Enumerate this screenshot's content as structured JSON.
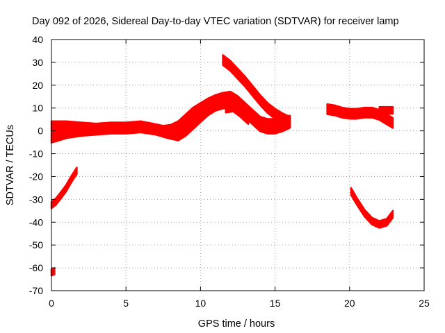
{
  "chart_data": {
    "type": "scatter",
    "title": "Day 092 of 2026, Sidereal Day-to-day VTEC variation (SDTVAR) for receiver lamp",
    "xlabel": "GPS time / hours",
    "ylabel": "SDTVAR / TECUs",
    "xlim": [
      0,
      25
    ],
    "ylim": [
      -70,
      40
    ],
    "xticks": [
      0,
      5,
      10,
      15,
      20,
      25
    ],
    "yticks": [
      40,
      30,
      20,
      10,
      0,
      -10,
      -20,
      -30,
      -40,
      -50,
      -60,
      -70
    ],
    "grid": true,
    "legend": "none",
    "color": "#ff0000",
    "series": [
      {
        "name": "track-lower-band",
        "thickness": 2.2,
        "points": [
          [
            0,
            -3
          ],
          [
            0.5,
            -2
          ],
          [
            1,
            -1
          ],
          [
            2,
            0
          ],
          [
            3,
            0.5
          ],
          [
            4,
            1
          ],
          [
            5,
            1
          ],
          [
            6,
            1.5
          ],
          [
            7,
            0.5
          ],
          [
            7.8,
            -1
          ],
          [
            8.5,
            -2
          ],
          [
            9,
            0
          ],
          [
            9.5,
            3
          ],
          [
            10,
            6
          ],
          [
            10.5,
            9
          ],
          [
            11,
            11
          ],
          [
            11.5,
            12
          ],
          [
            12,
            12
          ],
          [
            12.5,
            10
          ],
          [
            13,
            8
          ],
          [
            13.5,
            5
          ],
          [
            14,
            2
          ],
          [
            14.5,
            1
          ],
          [
            15,
            1
          ],
          [
            15.5,
            2
          ],
          [
            16,
            3.5
          ]
        ]
      },
      {
        "name": "track-upper-band",
        "thickness": 2.2,
        "points": [
          [
            0,
            2
          ],
          [
            1,
            2
          ],
          [
            2,
            1.5
          ],
          [
            3,
            1
          ],
          [
            4,
            1.5
          ],
          [
            5,
            1.5
          ],
          [
            6,
            2
          ],
          [
            6.8,
            1
          ],
          [
            7.5,
            0
          ],
          [
            8,
            0.5
          ],
          [
            8.5,
            2
          ],
          [
            9,
            5
          ],
          [
            9.5,
            8
          ],
          [
            10,
            10
          ],
          [
            10.5,
            12
          ],
          [
            11,
            13.5
          ],
          [
            11.5,
            14.5
          ],
          [
            12,
            15
          ],
          [
            12.5,
            13
          ],
          [
            13,
            10
          ],
          [
            13.5,
            7
          ],
          [
            14,
            4
          ],
          [
            14.5,
            3
          ],
          [
            15,
            3
          ],
          [
            15.5,
            3.5
          ],
          [
            16,
            4.5
          ]
        ]
      },
      {
        "name": "track-declining-arc",
        "thickness": 2.2,
        "points": [
          [
            11.5,
            31
          ],
          [
            12,
            28.5
          ],
          [
            12.5,
            25
          ],
          [
            13,
            21.5
          ],
          [
            13.5,
            17.5
          ],
          [
            14,
            13.5
          ],
          [
            14.5,
            10
          ],
          [
            15,
            7.5
          ],
          [
            15.5,
            5.5
          ],
          [
            16,
            4
          ]
        ]
      },
      {
        "name": "track-midday-dip",
        "thickness": 2.0,
        "points": [
          [
            11.7,
            10
          ],
          [
            12.2,
            10.5
          ],
          [
            12.7,
            8
          ],
          [
            13.2,
            5
          ]
        ]
      },
      {
        "name": "track-early-rising",
        "thickness": 1.4,
        "points": [
          [
            0,
            -32.5
          ],
          [
            0.3,
            -31
          ],
          [
            0.6,
            -28.5
          ],
          [
            1,
            -25
          ],
          [
            1.3,
            -21.5
          ],
          [
            1.7,
            -17.5
          ]
        ]
      },
      {
        "name": "track-early-blip",
        "thickness": 1.4,
        "points": [
          [
            0,
            -62
          ],
          [
            0.2,
            -61.5
          ]
        ]
      },
      {
        "name": "track-evening-band",
        "thickness": 2.2,
        "points": [
          [
            18.5,
            9.5
          ],
          [
            19,
            9
          ],
          [
            19.5,
            8
          ],
          [
            20,
            7.5
          ],
          [
            20.5,
            7.5
          ],
          [
            21,
            8
          ],
          [
            21.5,
            8
          ],
          [
            22,
            7
          ],
          [
            22.5,
            5
          ],
          [
            22.9,
            3.5
          ]
        ]
      },
      {
        "name": "track-evening-stub",
        "thickness": 1.5,
        "points": [
          [
            22,
            9
          ],
          [
            22.9,
            9
          ]
        ]
      },
      {
        "name": "track-evening-descent",
        "thickness": 1.5,
        "points": [
          [
            20.1,
            -26.5
          ],
          [
            20.5,
            -31
          ],
          [
            21,
            -36
          ],
          [
            21.5,
            -39.5
          ],
          [
            22,
            -41
          ],
          [
            22.5,
            -40
          ],
          [
            22.9,
            -36.5
          ]
        ]
      }
    ]
  }
}
